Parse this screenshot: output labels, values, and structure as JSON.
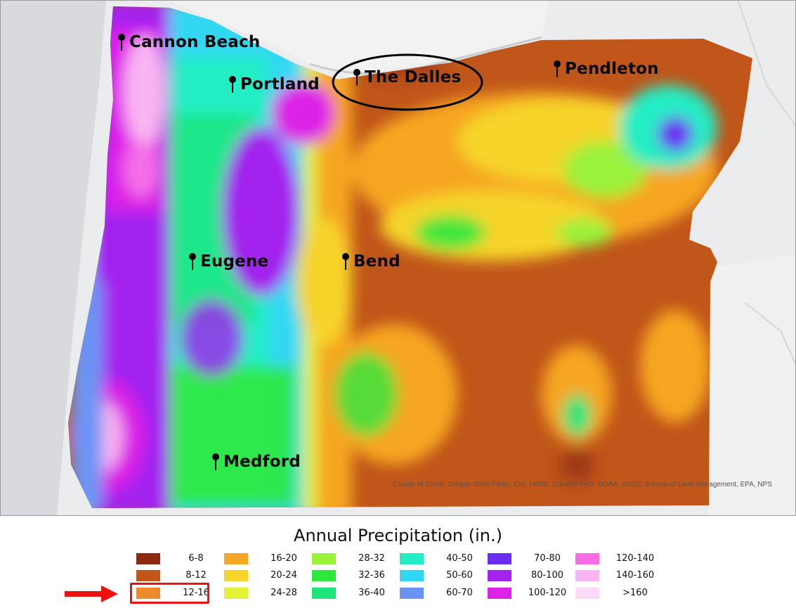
{
  "map": {
    "cities": [
      {
        "name": "Cannon Beach"
      },
      {
        "name": "Portland"
      },
      {
        "name": "The Dalles"
      },
      {
        "name": "Pendleton"
      },
      {
        "name": "Eugene"
      },
      {
        "name": "Bend"
      },
      {
        "name": "Medford"
      }
    ],
    "highlighted_city": "The Dalles",
    "attribution": "County of Crook, Oregon State Parks, Esri, HERE, Garmin, FAO, NOAA, USGS, Bureau of Land Management, EPA, NPS"
  },
  "legend": {
    "title": "Annual Precipitation (in.)",
    "items": [
      {
        "label": "6-8",
        "color": "#8b2a0e"
      },
      {
        "label": "8-12",
        "color": "#c0561a"
      },
      {
        "label": "12-16",
        "color": "#ee8a2e"
      },
      {
        "label": "16-20",
        "color": "#f6a623"
      },
      {
        "label": "20-24",
        "color": "#f6d42a"
      },
      {
        "label": "24-28",
        "color": "#e4f23a"
      },
      {
        "label": "28-32",
        "color": "#9af23a"
      },
      {
        "label": "32-36",
        "color": "#2fe83e"
      },
      {
        "label": "36-40",
        "color": "#1de57c"
      },
      {
        "label": "40-50",
        "color": "#22edc4"
      },
      {
        "label": "50-60",
        "color": "#32d8f2"
      },
      {
        "label": "60-70",
        "color": "#6a94f4"
      },
      {
        "label": "70-80",
        "color": "#6b2cf2"
      },
      {
        "label": "80-100",
        "color": "#a322ee"
      },
      {
        "label": "100-120",
        "color": "#dc22e6"
      },
      {
        "label": "120-140",
        "color": "#f56ee6"
      },
      {
        "label": "140-160",
        "color": "#f9b4f2"
      },
      {
        "label": ">160",
        "color": "#fbdaf8"
      }
    ],
    "highlighted_item": "12-16"
  }
}
